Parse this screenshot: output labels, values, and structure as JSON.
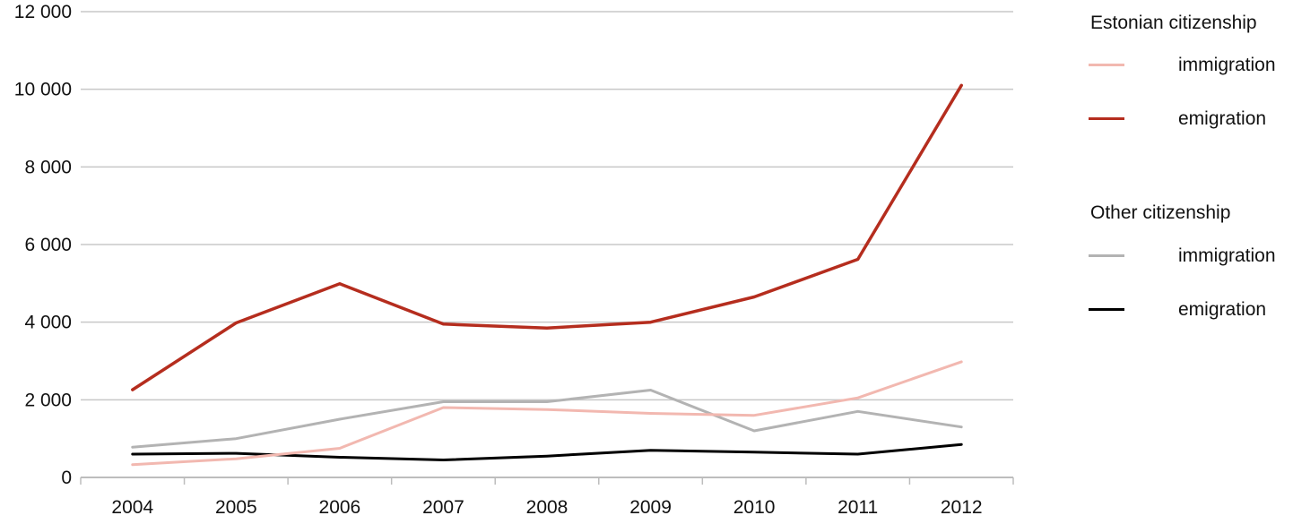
{
  "chart_data": {
    "type": "line",
    "x": [
      "2004",
      "2005",
      "2006",
      "2007",
      "2008",
      "2009",
      "2010",
      "2011",
      "2012"
    ],
    "ylim": [
      0,
      12000
    ],
    "yticks": [
      0,
      2000,
      4000,
      6000,
      8000,
      10000,
      12000
    ],
    "ytick_labels": [
      "0",
      "2 000",
      "4 000",
      "6 000",
      "8 000",
      "10 000",
      "12 000"
    ],
    "grid": true,
    "legend_position": "right",
    "groups": [
      {
        "title": "Estonian citizenship",
        "series": [
          {
            "name": "immigration",
            "color": "#f2b8b0",
            "values": [
              330,
              480,
              750,
              1800,
              1750,
              1650,
              1600,
              2050,
              2980
            ]
          },
          {
            "name": "emigration",
            "color": "#b52d1e",
            "values": [
              2260,
              3980,
              4990,
              3950,
              3850,
              4000,
              4650,
              5620,
              10100
            ]
          }
        ]
      },
      {
        "title": "Other citizenship",
        "series": [
          {
            "name": "immigration",
            "color": "#b3b3b3",
            "values": [
              780,
              1000,
              1500,
              1950,
              1950,
              2250,
              1200,
              1700,
              1300
            ]
          },
          {
            "name": "emigration",
            "color": "#000000",
            "values": [
              600,
              620,
              520,
              450,
              550,
              700,
              650,
              600,
              850
            ]
          }
        ]
      }
    ]
  }
}
